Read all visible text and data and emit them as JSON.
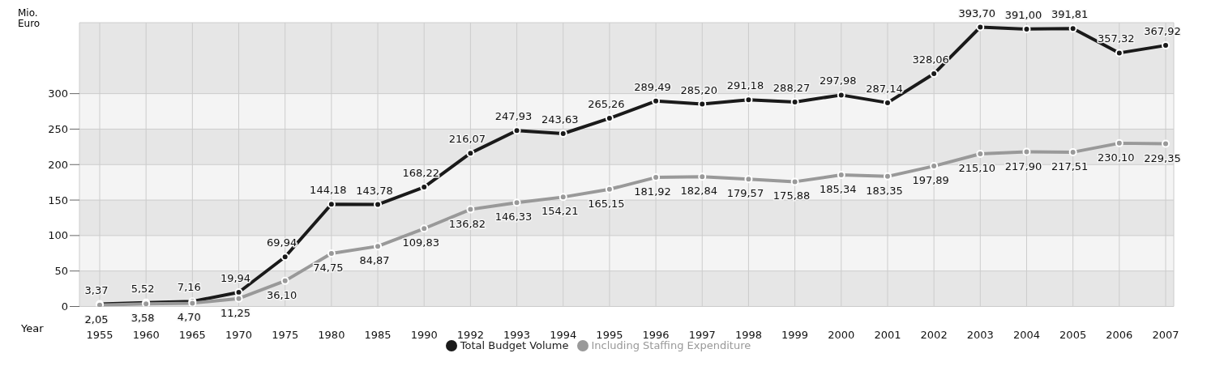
{
  "chart_data": {
    "type": "line",
    "xlabel": "Year",
    "ylabel": "Mio. Euro",
    "categories": [
      "1955",
      "1960",
      "1965",
      "1970",
      "1975",
      "1980",
      "1985",
      "1990",
      "1992",
      "1993",
      "1994",
      "1995",
      "1996",
      "1997",
      "1998",
      "1999",
      "2000",
      "2001",
      "2002",
      "2003",
      "2004",
      "2005",
      "2006",
      "2007"
    ],
    "series": [
      {
        "name": "Total Budget Volume",
        "color": "#1a1a1a",
        "values": [
          3.37,
          5.52,
          7.16,
          19.94,
          69.94,
          144.18,
          143.78,
          168.22,
          216.07,
          247.93,
          243.63,
          265.26,
          289.49,
          285.2,
          291.18,
          288.27,
          297.98,
          287.14,
          328.06,
          393.7,
          391.0,
          391.81,
          357.32,
          367.92
        ],
        "value_labels": [
          "3,37",
          "5,52",
          "7,16",
          "19,94",
          "69,94",
          "144,18",
          "143,78",
          "168,22",
          "216,07",
          "247,93",
          "243,63",
          "265,26",
          "289,49",
          "285,20",
          "291,18",
          "288,27",
          "297,98",
          "287,14",
          "328,06",
          "393,70",
          "391,00",
          "391,81",
          "357,32",
          "367,92"
        ]
      },
      {
        "name": "Including Staffing Expenditure",
        "color": "#999999",
        "values": [
          2.05,
          3.58,
          4.7,
          11.25,
          36.1,
          74.75,
          84.87,
          109.83,
          136.82,
          146.33,
          154.21,
          165.15,
          181.92,
          182.84,
          179.57,
          175.88,
          185.34,
          183.35,
          197.89,
          215.1,
          217.9,
          217.51,
          230.1,
          229.35
        ],
        "value_labels": [
          "2,05",
          "3,58",
          "4,70",
          "11,25",
          "36,10",
          "74,75",
          "84,87",
          "109,83",
          "136,82",
          "146,33",
          "154,21",
          "165,15",
          "181,92",
          "182,84",
          "179,57",
          "175,88",
          "185,34",
          "183,35",
          "197,89",
          "215,10",
          "217,90",
          "217,51",
          "230,10",
          "229,35"
        ]
      }
    ],
    "ylim": [
      0,
      400
    ],
    "yticks": [
      0,
      50,
      100,
      150,
      200,
      250,
      300
    ],
    "grid": true,
    "legend": "bottom",
    "marker": "circle",
    "line_style": "solid"
  }
}
